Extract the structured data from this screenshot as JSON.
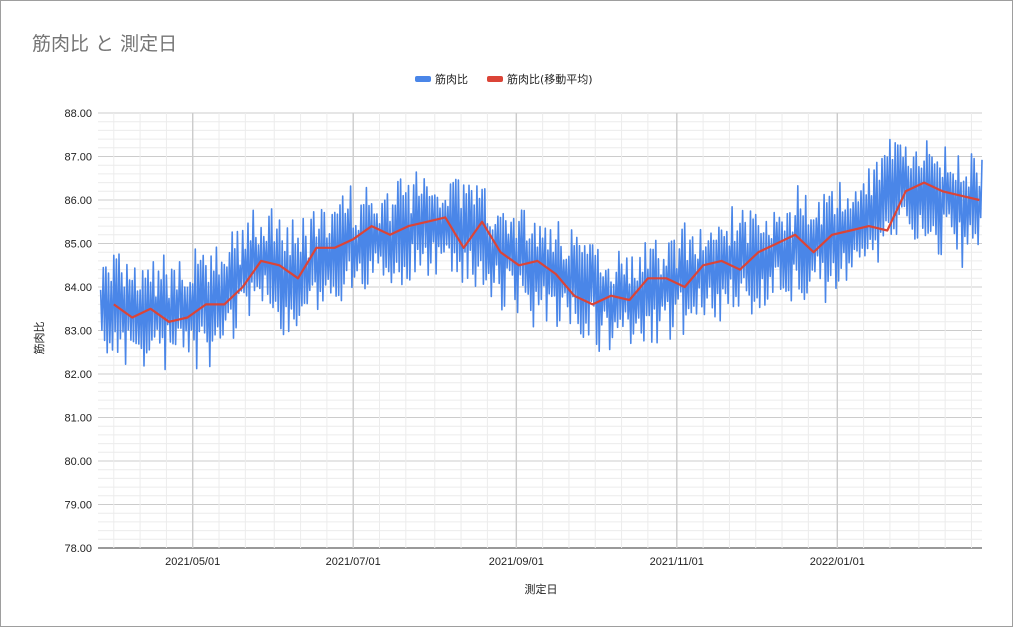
{
  "window": {
    "title": "筋肉比 と 測定日"
  },
  "colors": {
    "series_raw": "#4a86e8",
    "series_ma": "#db4437",
    "grid_major": "#cccccc",
    "grid_minor": "#ececec"
  },
  "chart_data": {
    "type": "line",
    "title": "筋肉比 と 測定日",
    "xlabel": "測定日",
    "ylabel": "筋肉比",
    "xlim": [
      "2021-03-26",
      "2022-02-25"
    ],
    "ylim": [
      78,
      88
    ],
    "x_ticks": [
      "2021/05/01",
      "2021/07/01",
      "2021/09/01",
      "2021/11/01",
      "2022/01/01"
    ],
    "y_ticks": [
      "78.00",
      "79.00",
      "80.00",
      "81.00",
      "82.00",
      "83.00",
      "84.00",
      "85.00",
      "86.00",
      "87.00",
      "88.00"
    ],
    "grid": true,
    "legend": "top-center",
    "series": [
      {
        "name": "筋肉比",
        "color": "#4a86e8",
        "x": [
          "2021-03-27",
          "2021-04-11",
          "2021-04-26",
          "2021-05-11",
          "2021-05-26",
          "2021-06-10",
          "2021-06-25",
          "2021-07-10",
          "2021-07-25",
          "2021-08-09",
          "2021-08-24",
          "2021-09-08",
          "2021-09-23",
          "2021-10-08",
          "2021-10-23",
          "2021-11-07",
          "2021-11-22",
          "2021-12-07",
          "2021-12-22",
          "2022-01-06",
          "2022-01-21",
          "2022-02-05",
          "2022-02-20"
        ],
        "values": [
          83.5,
          83.3,
          83.5,
          83.7,
          84.6,
          84.2,
          84.9,
          85.1,
          85.4,
          85.5,
          84.9,
          84.5,
          84.2,
          83.7,
          83.8,
          84.3,
          84.6,
          84.8,
          85.0,
          85.2,
          86.1,
          86.2,
          85.9
        ],
        "max": 87.85,
        "min": 81.7
      },
      {
        "name": "筋肉比(移動平均)",
        "color": "#db4437",
        "x": [
          "2021-04-01",
          "2021-04-08",
          "2021-04-15",
          "2021-04-22",
          "2021-04-29",
          "2021-05-06",
          "2021-05-13",
          "2021-05-20",
          "2021-05-27",
          "2021-06-03",
          "2021-06-10",
          "2021-06-17",
          "2021-06-24",
          "2021-07-01",
          "2021-07-08",
          "2021-07-15",
          "2021-07-22",
          "2021-07-29",
          "2021-08-05",
          "2021-08-12",
          "2021-08-19",
          "2021-08-26",
          "2021-09-02",
          "2021-09-09",
          "2021-09-16",
          "2021-09-23",
          "2021-09-30",
          "2021-10-07",
          "2021-10-14",
          "2021-10-21",
          "2021-10-28",
          "2021-11-04",
          "2021-11-11",
          "2021-11-18",
          "2021-11-25",
          "2021-12-02",
          "2021-12-09",
          "2021-12-16",
          "2021-12-23",
          "2021-12-30",
          "2022-01-06",
          "2022-01-13",
          "2022-01-20",
          "2022-01-27",
          "2022-02-03",
          "2022-02-10",
          "2022-02-17",
          "2022-02-24"
        ],
        "values": [
          83.6,
          83.3,
          83.5,
          83.2,
          83.3,
          83.6,
          83.6,
          84.0,
          84.6,
          84.5,
          84.2,
          84.9,
          84.9,
          85.1,
          85.4,
          85.2,
          85.4,
          85.5,
          85.6,
          84.9,
          85.5,
          84.8,
          84.5,
          84.6,
          84.3,
          83.8,
          83.6,
          83.8,
          83.7,
          84.2,
          84.2,
          84.0,
          84.5,
          84.6,
          84.4,
          84.8,
          85.0,
          85.2,
          84.8,
          85.2,
          85.3,
          85.4,
          85.3,
          86.2,
          86.4,
          86.2,
          86.1,
          86.0
        ]
      }
    ]
  }
}
